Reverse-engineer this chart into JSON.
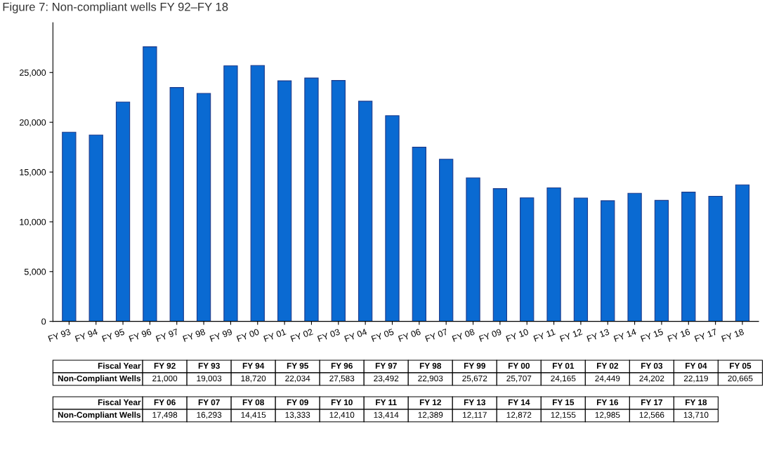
{
  "chart_data": {
    "type": "bar",
    "title": "Figure 7: Non-compliant wells FY 92–FY 18",
    "categories": [
      "FY 93",
      "FY 94",
      "FY 95",
      "FY 96",
      "FY 97",
      "FY 98",
      "FY 99",
      "FY 00",
      "FY 01",
      "FY 02",
      "FY 03",
      "FY 04",
      "FY 05",
      "FY 06",
      "FY 07",
      "FY 08",
      "FY 09",
      "FY 10",
      "FY 11",
      "FY 12",
      "FY 13",
      "FY 14",
      "FY 15",
      "FY 16",
      "FY 17",
      "FY 18"
    ],
    "values": [
      19003,
      18720,
      22034,
      27583,
      23492,
      22903,
      25672,
      25707,
      24165,
      24449,
      24202,
      22119,
      20665,
      17498,
      16293,
      14415,
      13333,
      12410,
      13414,
      12389,
      12117,
      12872,
      12155,
      12985,
      12566,
      13710
    ],
    "color": "#0a6ad2",
    "ylim": [
      0,
      30000
    ],
    "yticks": [
      {
        "value": 0,
        "label": "0"
      },
      {
        "value": 5000,
        "label": "5,000"
      },
      {
        "value": 10000,
        "label": "10,000"
      },
      {
        "value": 15000,
        "label": "15,000"
      },
      {
        "value": 20000,
        "label": "20,000"
      },
      {
        "value": 25000,
        "label": "25,000"
      }
    ],
    "annotations": [
      "Fiscal Year",
      "Non-Compliant Wells",
      "FY 92",
      "21,000",
      "19,003",
      "18,720",
      "22,034",
      "27,583",
      "23,492",
      "22,903",
      "25,672",
      "25,707",
      "24,165",
      "24,449",
      "24,202",
      "22,119",
      "20,665",
      "17,498",
      "16,293",
      "14,415",
      "13,333",
      "12,410",
      "13,414",
      "12,389",
      "12,117",
      "12,872",
      "12,155",
      "12,985",
      "12,566",
      "13,710"
    ],
    "grid": false,
    "legend": false
  }
}
